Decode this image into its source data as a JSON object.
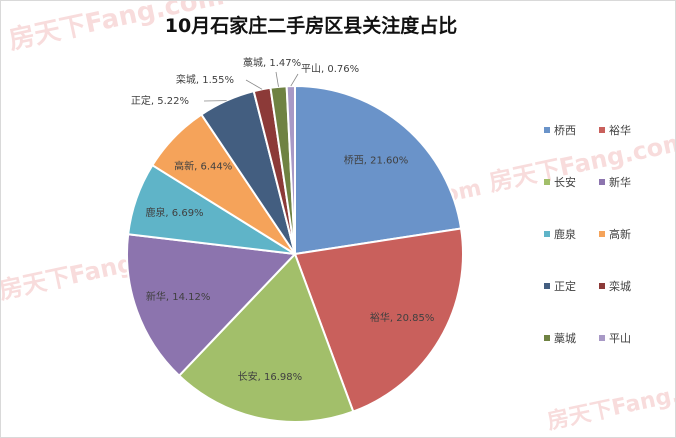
{
  "chart_data": {
    "type": "pie",
    "title": "10月石家庄二手房区县关注度占比",
    "categories": [
      "桥西",
      "裕华",
      "长安",
      "新华",
      "鹿泉",
      "高新",
      "正定",
      "栾城",
      "藁城",
      "平山"
    ],
    "values": [
      21.6,
      20.85,
      16.98,
      14.12,
      6.69,
      6.44,
      5.22,
      1.55,
      1.47,
      0.76
    ],
    "labels": [
      "桥西, 21.60%",
      "裕华, 20.85%",
      "长安, 16.98%",
      "新华, 14.12%",
      "鹿泉, 6.69%",
      "高新, 6.44%",
      "正定, 5.22%",
      "栾城, 1.55%",
      "藁城, 1.47%",
      "平山, 0.76%"
    ],
    "colors": [
      "#6a93c9",
      "#c9605c",
      "#a2bf6a",
      "#8c74ae",
      "#5fb4c8",
      "#f5a35a",
      "#435e80",
      "#8c3a38",
      "#6f8242",
      "#a899c6"
    ],
    "legend_placement": "right"
  },
  "watermark": "房天下Fang.com"
}
